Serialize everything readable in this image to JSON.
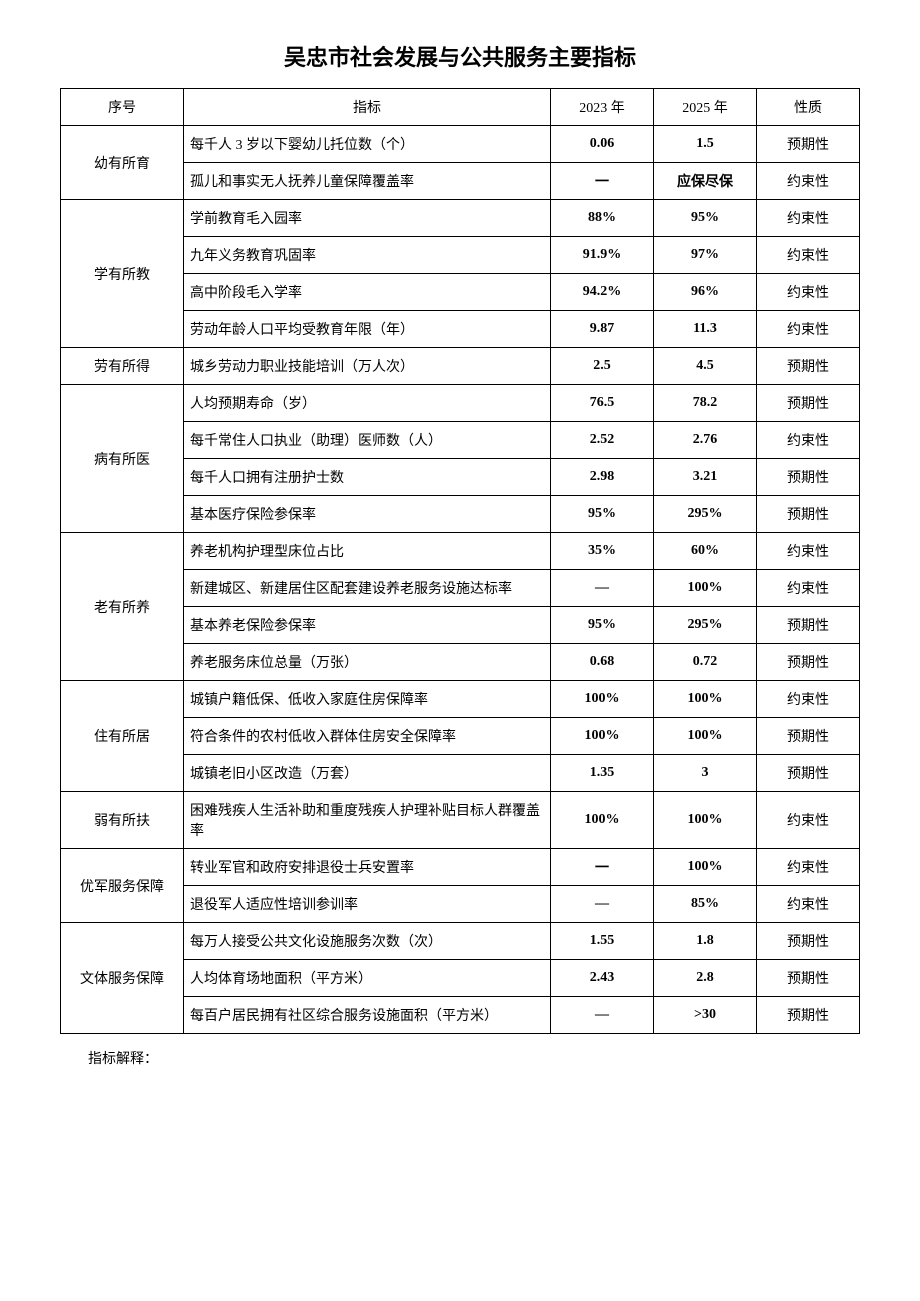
{
  "title": "吴忠市社会发展与公共服务主要指标",
  "headers": {
    "seq": "序号",
    "indicator": "指标",
    "year2023": "2023 年",
    "year2025": "2025 年",
    "nature": "性质"
  },
  "categories": [
    {
      "name": "幼有所育",
      "rows": [
        {
          "indicator": "每千人 3 岁以下婴幼儿托位数（个）",
          "y2023": "0.06",
          "y2025": "1.5",
          "nature": "预期性"
        },
        {
          "indicator": "孤儿和事实无人抚养儿童保障覆盖率",
          "y2023": "一",
          "y2025": "应保尽保",
          "nature": "约束性"
        }
      ]
    },
    {
      "name": "学有所教",
      "rows": [
        {
          "indicator": "学前教育毛入园率",
          "y2023": "88%",
          "y2025": "95%",
          "nature": "约束性"
        },
        {
          "indicator": "九年义务教育巩固率",
          "y2023": "91.9%",
          "y2025": "97%",
          "nature": "约束性"
        },
        {
          "indicator": "高中阶段毛入学率",
          "y2023": "94.2%",
          "y2025": "96%",
          "nature": "约束性"
        },
        {
          "indicator": "劳动年龄人口平均受教育年限（年）",
          "y2023": "9.87",
          "y2025": "11.3",
          "nature": "约束性"
        }
      ]
    },
    {
      "name": "劳有所得",
      "rows": [
        {
          "indicator": "城乡劳动力职业技能培训（万人次）",
          "y2023": "2.5",
          "y2025": "4.5",
          "nature": "预期性"
        }
      ]
    },
    {
      "name": "病有所医",
      "rows": [
        {
          "indicator": "人均预期寿命（岁）",
          "y2023": "76.5",
          "y2025": "78.2",
          "nature": "预期性"
        },
        {
          "indicator": "每千常住人口执业（助理）医师数（人）",
          "y2023": "2.52",
          "y2025": "2.76",
          "nature": "约束性"
        },
        {
          "indicator": "每千人口拥有注册护士数",
          "y2023": "2.98",
          "y2025": "3.21",
          "nature": "预期性"
        },
        {
          "indicator": "基本医疗保险参保率",
          "y2023": "95%",
          "y2025": "295%",
          "nature": "预期性"
        }
      ]
    },
    {
      "name": "老有所养",
      "rows": [
        {
          "indicator": "养老机构护理型床位占比",
          "y2023": "35%",
          "y2025": "60%",
          "nature": "约束性"
        },
        {
          "indicator": "新建城区、新建居住区配套建设养老服务设施达标率",
          "y2023": "—",
          "y2025": "100%",
          "nature": "约束性"
        },
        {
          "indicator": "基本养老保险参保率",
          "y2023": "95%",
          "y2025": "295%",
          "nature": "预期性"
        },
        {
          "indicator": "养老服务床位总量（万张）",
          "y2023": "0.68",
          "y2025": "0.72",
          "nature": "预期性"
        }
      ]
    },
    {
      "name": "住有所居",
      "rows": [
        {
          "indicator": "城镇户籍低保、低收入家庭住房保障率",
          "y2023": "100%",
          "y2025": "100%",
          "nature": "约束性"
        },
        {
          "indicator": "符合条件的农村低收入群体住房安全保障率",
          "y2023": "100%",
          "y2025": "100%",
          "nature": "预期性"
        },
        {
          "indicator": "城镇老旧小区改造（万套）",
          "y2023": "1.35",
          "y2025": "3",
          "nature": "预期性"
        }
      ]
    },
    {
      "name": "弱有所扶",
      "rows": [
        {
          "indicator": "困难残疾人生活补助和重度残疾人护理补贴目标人群覆盖率",
          "y2023": "100%",
          "y2025": "100%",
          "nature": "约束性"
        }
      ]
    },
    {
      "name": "优军服务保障",
      "rows": [
        {
          "indicator": "转业军官和政府安排退役士兵安置率",
          "y2023": "一",
          "y2025": "100%",
          "nature": "约束性"
        },
        {
          "indicator": "退役军人适应性培训参训率",
          "y2023": "—",
          "y2025": "85%",
          "nature": "约束性"
        }
      ]
    },
    {
      "name": "文体服务保障",
      "rows": [
        {
          "indicator": "每万人接受公共文化设施服务次数（次）",
          "y2023": "1.55",
          "y2025": "1.8",
          "nature": "预期性"
        },
        {
          "indicator": "人均体育场地面积（平方米）",
          "y2023": "2.43",
          "y2025": "2.8",
          "nature": "预期性"
        },
        {
          "indicator": "每百户居民拥有社区综合服务设施面积（平方米）",
          "y2023": "—",
          "y2025": ">30",
          "nature": "预期性"
        }
      ]
    }
  ],
  "footnote": "指标解释："
}
